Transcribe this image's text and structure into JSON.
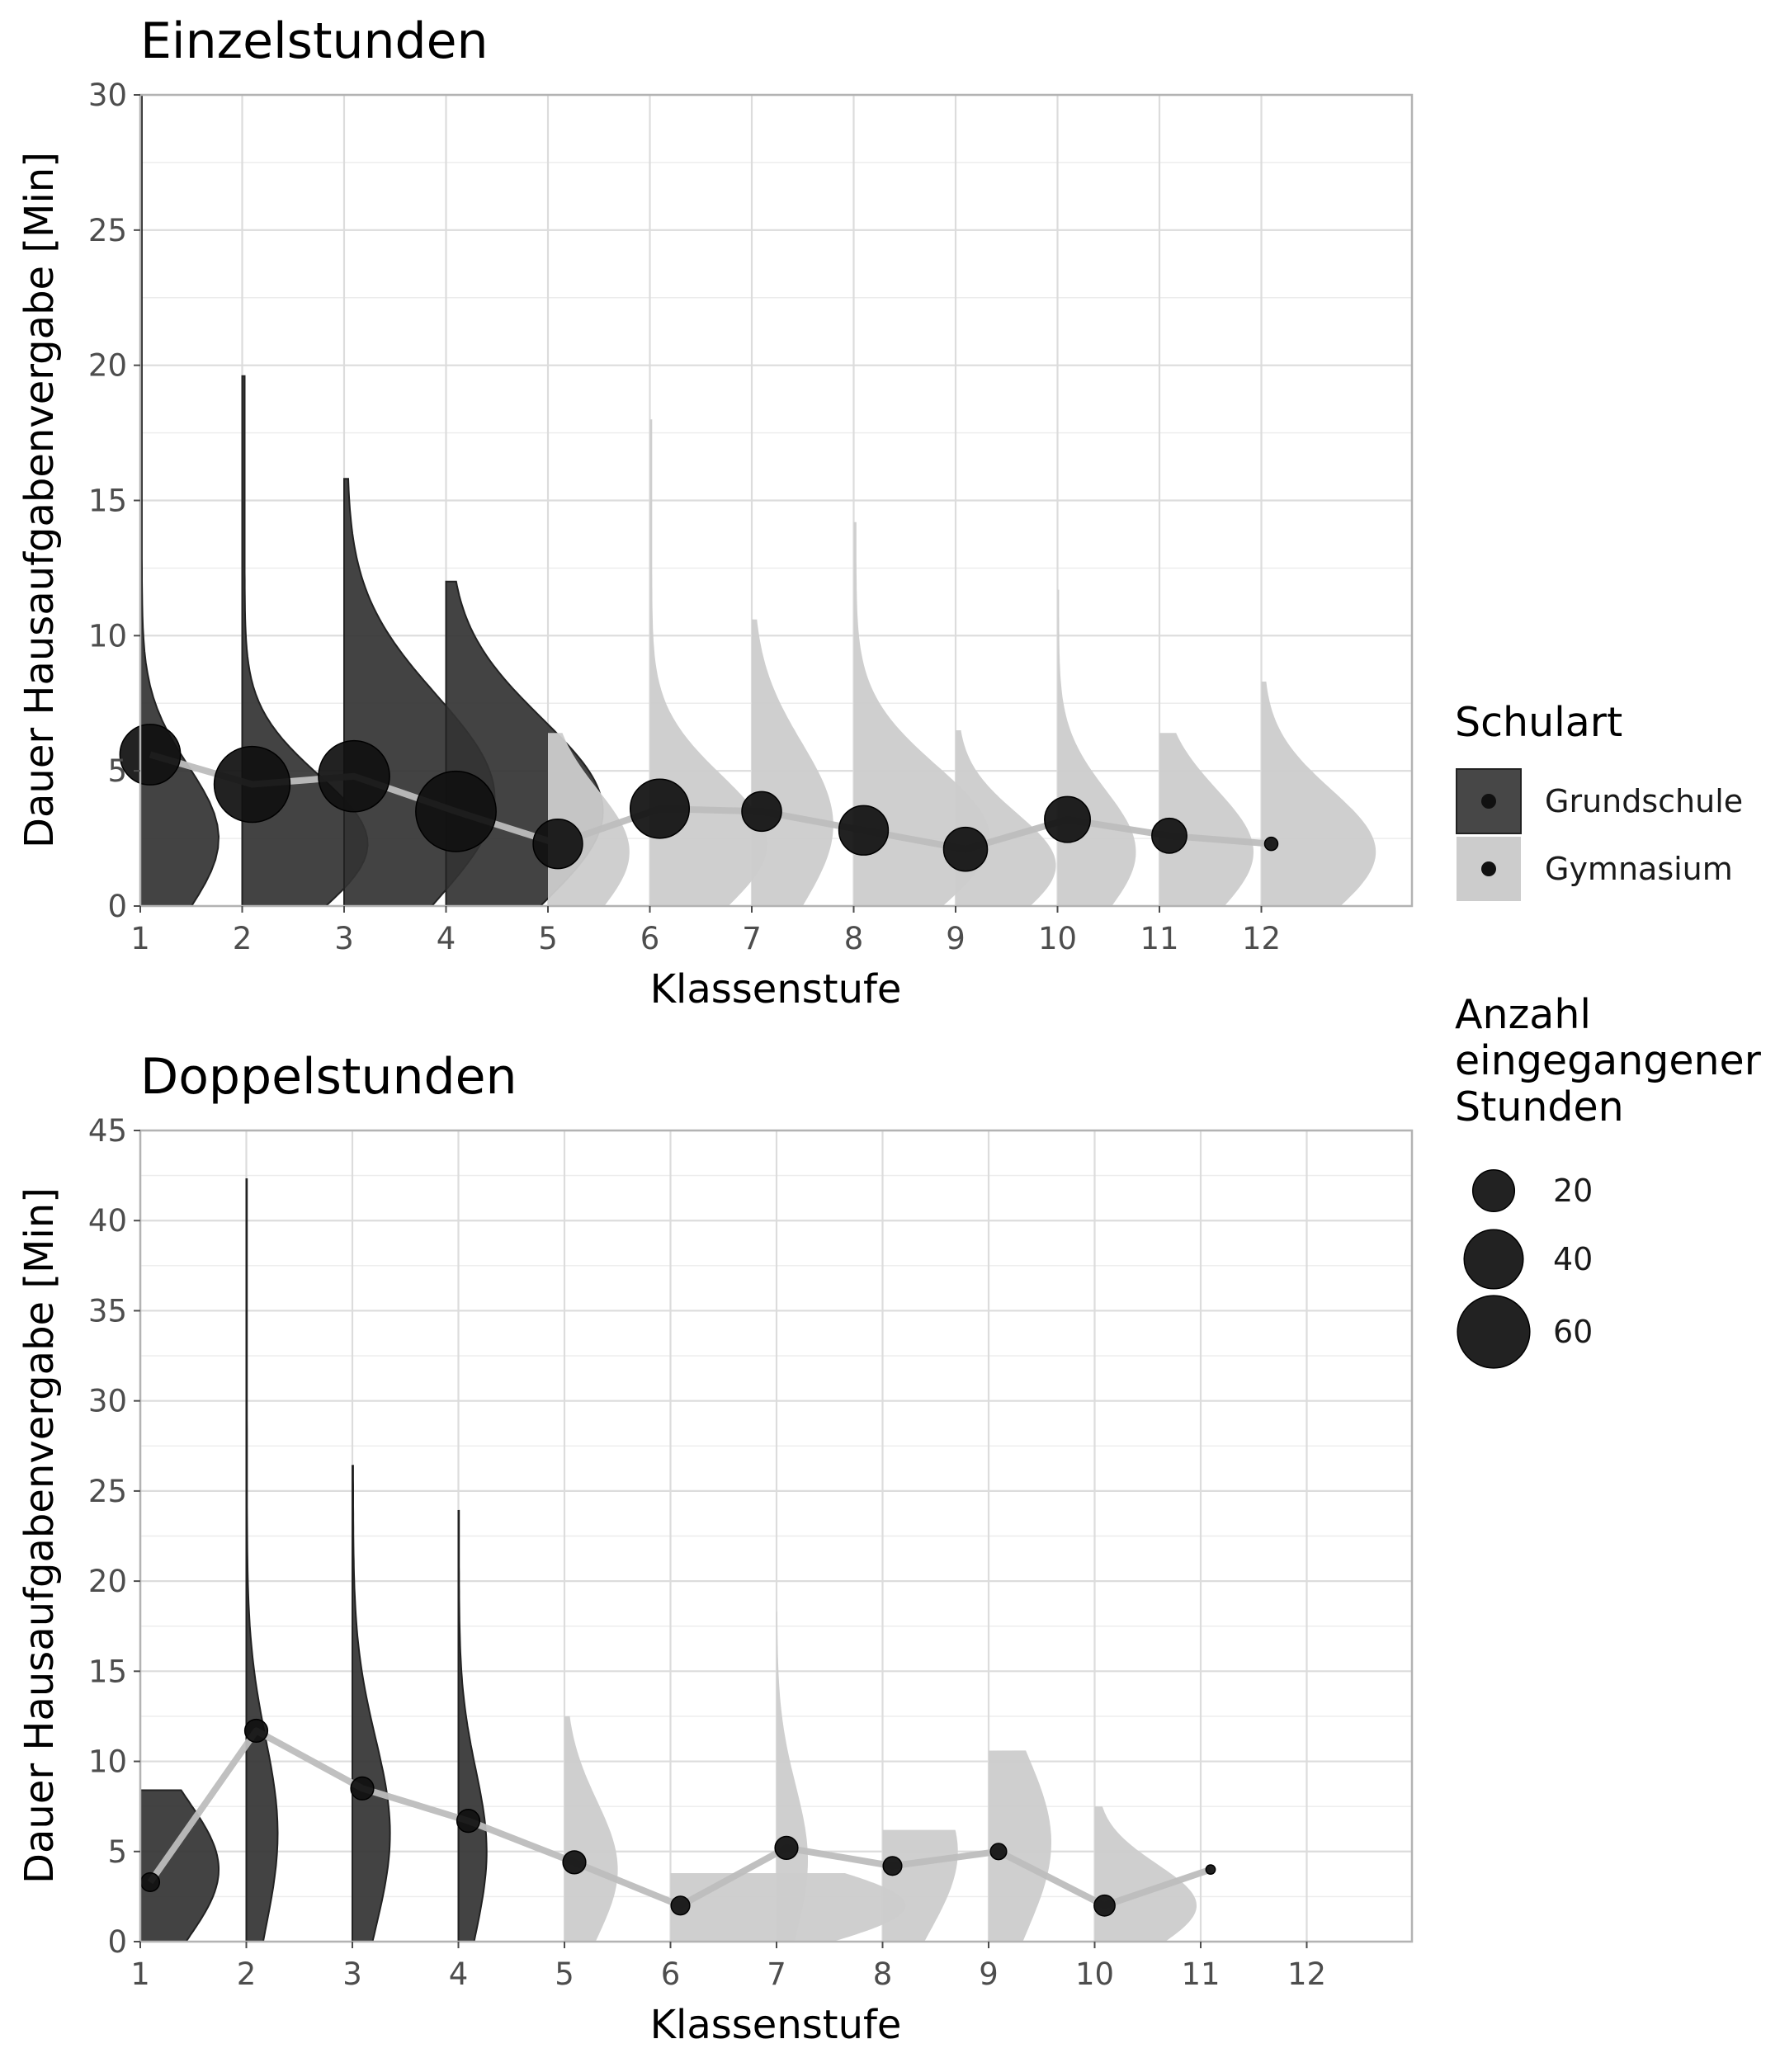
{
  "colors": {
    "grundschule": "#333333",
    "gymnasium": "#cccccc",
    "point": "#111111",
    "line": "#bdbdbd",
    "grid": "#e0e0e0"
  },
  "legend": {
    "schulart_title": "Schulart",
    "schulart_items": [
      "Grundschule",
      "Gymnasium"
    ],
    "size_title_lines": [
      "Anzahl",
      "eingegangener",
      "Stunden"
    ],
    "size_values": [
      20,
      40,
      60
    ]
  },
  "chart_data": [
    {
      "type": "violin",
      "title": "Einzelstunden",
      "xlabel": "Klassenstufe",
      "ylabel": "Dauer Hausaufgabenvergabe [Min]",
      "ylim": [
        0,
        30
      ],
      "yticks": [
        0,
        5,
        10,
        15,
        20,
        25,
        30
      ],
      "xticks": [
        1,
        2,
        3,
        4,
        5,
        6,
        7,
        8,
        9,
        10,
        11,
        12
      ],
      "grid": true,
      "legend_position": "right",
      "groups": [
        {
          "klasse": 1,
          "schulart": "Grundschule",
          "max": 30.0,
          "mode": 2.5,
          "spread": 0.5,
          "mean": 5.6,
          "n": 42
        },
        {
          "klasse": 2,
          "schulart": "Grundschule",
          "max": 19.6,
          "mode": 2.3,
          "spread": 0.8,
          "mean": 4.5,
          "n": 66
        },
        {
          "klasse": 3,
          "schulart": "Grundschule",
          "max": 15.8,
          "mode": 4.0,
          "spread": 0.96,
          "mean": 4.8,
          "n": 58
        },
        {
          "klasse": 4,
          "schulart": "Grundschule",
          "max": 12.0,
          "mode": 3.5,
          "spread": 1.0,
          "mean": 3.5,
          "n": 74
        },
        {
          "klasse": 5,
          "schulart": "Gymnasium",
          "max": 6.4,
          "mode": 2.0,
          "spread": 0.52,
          "mean": 2.3,
          "n": 28
        },
        {
          "klasse": 6,
          "schulart": "Gymnasium",
          "max": 18.0,
          "mode": 2.3,
          "spread": 0.75,
          "mean": 3.6,
          "n": 40
        },
        {
          "klasse": 7,
          "schulart": "Gymnasium",
          "max": 10.6,
          "mode": 3.0,
          "spread": 0.52,
          "mean": 3.5,
          "n": 18
        },
        {
          "klasse": 8,
          "schulart": "Gymnasium",
          "max": 14.2,
          "mode": 2.5,
          "spread": 0.87,
          "mean": 2.8,
          "n": 28
        },
        {
          "klasse": 9,
          "schulart": "Gymnasium",
          "max": 6.5,
          "mode": 1.5,
          "spread": 0.64,
          "mean": 2.1,
          "n": 22
        },
        {
          "klasse": 10,
          "schulart": "Gymnasium",
          "max": 11.7,
          "mode": 2.0,
          "spread": 0.5,
          "mean": 3.2,
          "n": 24
        },
        {
          "klasse": 11,
          "schulart": "Gymnasium",
          "max": 6.4,
          "mode": 2.0,
          "spread": 0.6,
          "mean": 2.6,
          "n": 14
        },
        {
          "klasse": 12,
          "schulart": "Gymnasium",
          "max": 8.3,
          "mode": 2.0,
          "spread": 0.73,
          "mean": 2.3,
          "n": 2
        }
      ]
    },
    {
      "type": "violin",
      "title": "Doppelstunden",
      "xlabel": "Klassenstufe",
      "ylabel": "Dauer Hausaufgabenvergabe [Min]",
      "ylim": [
        0,
        45
      ],
      "yticks": [
        0,
        5,
        10,
        15,
        20,
        25,
        30,
        35,
        40,
        45
      ],
      "xticks": [
        1,
        2,
        3,
        4,
        5,
        6,
        7,
        8,
        9,
        10,
        11,
        12
      ],
      "grid": true,
      "groups": [
        {
          "klasse": 1,
          "schulart": "Grundschule",
          "max": 8.4,
          "mode": 4.0,
          "spread": 0.5,
          "mean": 3.3,
          "n": 4
        },
        {
          "klasse": 2,
          "schulart": "Grundschule",
          "max": 42.3,
          "mode": 6.0,
          "spread": 0.2,
          "mean": 11.7,
          "n": 6
        },
        {
          "klasse": 3,
          "schulart": "Grundschule",
          "max": 26.4,
          "mode": 6.0,
          "spread": 0.24,
          "mean": 8.5,
          "n": 6
        },
        {
          "klasse": 4,
          "schulart": "Grundschule",
          "max": 23.9,
          "mode": 5.0,
          "spread": 0.18,
          "mean": 6.7,
          "n": 6
        },
        {
          "klasse": 5,
          "schulart": "Gymnasium",
          "max": 12.5,
          "mode": 4.0,
          "spread": 0.34,
          "mean": 4.4,
          "n": 6
        },
        {
          "klasse": 6,
          "schulart": "Gymnasium",
          "max": 3.8,
          "mode": 2.0,
          "spread": 1.5,
          "mean": 2.0,
          "n": 4
        },
        {
          "klasse": 7,
          "schulart": "Gymnasium",
          "max": 18.3,
          "mode": 4.5,
          "spread": 0.2,
          "mean": 5.2,
          "n": 6
        },
        {
          "klasse": 8,
          "schulart": "Gymnasium",
          "max": 6.2,
          "mode": 5.0,
          "spread": 0.48,
          "mean": 4.2,
          "n": 4
        },
        {
          "klasse": 9,
          "schulart": "Gymnasium",
          "max": 10.6,
          "mode": 5.5,
          "spread": 0.4,
          "mean": 5.0,
          "n": 3
        },
        {
          "klasse": 10,
          "schulart": "Gymnasium",
          "max": 7.5,
          "mode": 2.0,
          "spread": 0.65,
          "mean": 2.0,
          "n": 5
        },
        {
          "klasse": 11,
          "schulart": "Gymnasium",
          "max": null,
          "mode": null,
          "spread": 0,
          "mean": 4.0,
          "n": 1
        }
      ]
    }
  ]
}
